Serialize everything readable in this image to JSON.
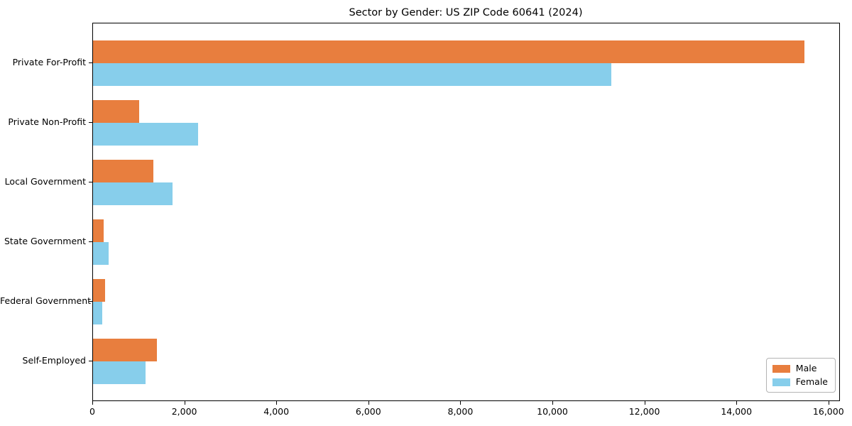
{
  "title": "Sector by Gender: US ZIP Code 60641 (2024)",
  "chart_data": {
    "type": "bar",
    "orientation": "horizontal",
    "title": "Sector by Gender: US ZIP Code 60641 (2024)",
    "xlabel": "",
    "ylabel": "",
    "categories": [
      "Private For-Profit",
      "Private Non-Profit",
      "Local Government",
      "State Government",
      "Federal Government",
      "Self-Employed"
    ],
    "series": [
      {
        "name": "Male",
        "color": "#E87E3E",
        "values": [
          15460,
          1010,
          1310,
          230,
          270,
          1390
        ]
      },
      {
        "name": "Female",
        "color": "#87CEEB",
        "values": [
          11270,
          2290,
          1730,
          340,
          200,
          1140
        ]
      }
    ],
    "xlim": [
      0,
      16250
    ],
    "xticks": [
      0,
      2000,
      4000,
      6000,
      8000,
      10000,
      12000,
      14000,
      16000
    ],
    "xtick_labels": [
      "0",
      "2,000",
      "4,000",
      "6,000",
      "8,000",
      "10,000",
      "12,000",
      "14,000",
      "16,000"
    ],
    "grid": false,
    "legend_position": "lower right"
  },
  "legend": {
    "items": [
      {
        "label": "Male",
        "color": "#E87E3E"
      },
      {
        "label": "Female",
        "color": "#87CEEB"
      }
    ]
  }
}
